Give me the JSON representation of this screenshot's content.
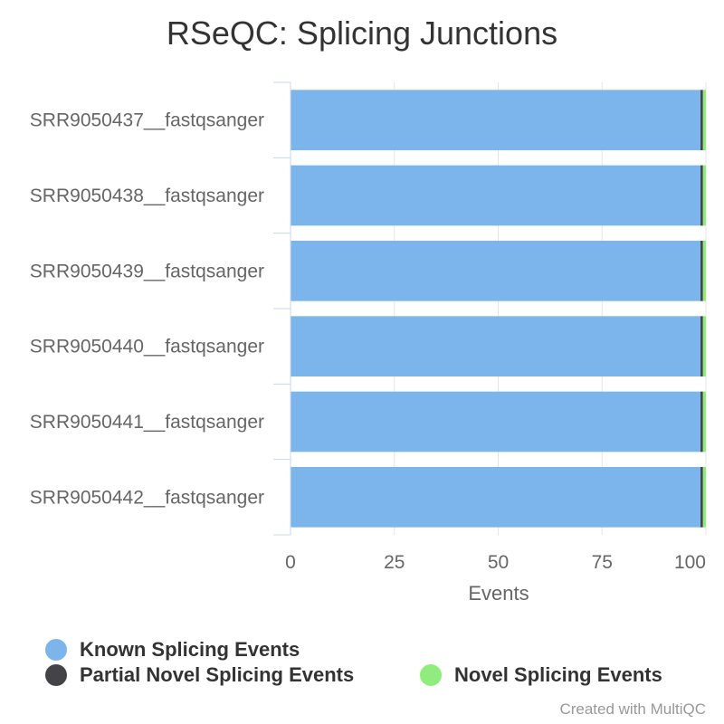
{
  "chart_data": {
    "type": "bar",
    "orientation": "horizontal",
    "stacked": true,
    "title": "RSeQC: Splicing Junctions",
    "xlabel": "Events",
    "ylabel": "",
    "xlim": [
      0,
      100
    ],
    "xticks": [
      0,
      25,
      50,
      75,
      100
    ],
    "categories": [
      "SRR9050437__fastqsanger",
      "SRR9050438__fastqsanger",
      "SRR9050439__fastqsanger",
      "SRR9050440__fastqsanger",
      "SRR9050441__fastqsanger",
      "SRR9050442__fastqsanger"
    ],
    "series": [
      {
        "name": "Known Splicing Events",
        "color": "#7cb5ec",
        "values": [
          98.7,
          98.7,
          98.7,
          98.7,
          98.7,
          98.7
        ]
      },
      {
        "name": "Partial Novel Splicing Events",
        "color": "#434348",
        "values": [
          0.6,
          0.6,
          0.6,
          0.6,
          0.6,
          0.6
        ]
      },
      {
        "name": "Novel Splicing Events",
        "color": "#90ed7d",
        "values": [
          0.7,
          0.7,
          0.7,
          0.7,
          0.7,
          0.7
        ]
      }
    ],
    "legend_position": "bottom",
    "grid": true
  },
  "credit": "Created with MultiQC"
}
